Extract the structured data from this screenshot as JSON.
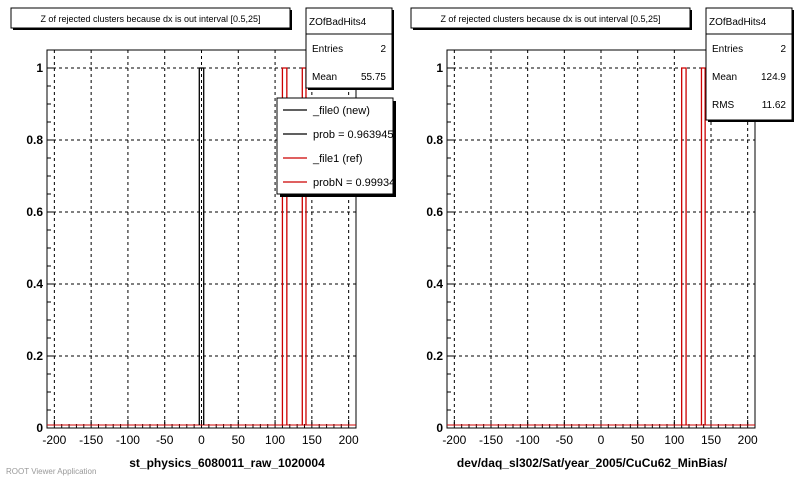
{
  "footer": "ROOT Viewer Application",
  "chart_data": [
    {
      "type": "histogram",
      "title": "Z of rejected clusters  because dx is out interval  [0.5,25]",
      "xlabel": "st_physics_6080011_raw_1020004",
      "xlim": [
        -210,
        210
      ],
      "ylim": [
        0,
        1.05
      ],
      "x_ticks": [
        "-200",
        "-150",
        "-100",
        "-50",
        "0",
        "50",
        "100",
        "150",
        "200"
      ],
      "y_ticks": [
        "0",
        "0.2",
        "0.4",
        "0.6",
        "0.8",
        "1"
      ],
      "grid": true,
      "stats": {
        "name": "ZOfBadHits4",
        "rows": [
          {
            "label": "Entries",
            "value": "2"
          },
          {
            "label": "Mean",
            "value": "55.75"
          }
        ]
      },
      "legend": {
        "placement": "top-right",
        "entries": [
          {
            "label": "_file0 (new)",
            "color": "#000000"
          },
          {
            "label": "prob = 0.963945",
            "color": "#000000"
          },
          {
            "label": "_file1 (ref)",
            "color": "#cc0000"
          },
          {
            "label": "probN = 0.999347",
            "color": "#cc0000"
          }
        ]
      },
      "series": [
        {
          "name": "_file0 (new)",
          "color": "#000000",
          "bins": [
            {
              "x0": -3,
              "x1": 3,
              "y": 1
            }
          ]
        },
        {
          "name": "_file1 (ref)",
          "color": "#cc0000",
          "bins": [
            {
              "x0": 110,
              "x1": 116,
              "y": 1
            },
            {
              "x0": 137,
              "x1": 142,
              "y": 1
            }
          ]
        }
      ]
    },
    {
      "type": "histogram",
      "title": "Z of rejected clusters  because dx is out interval  [0.5,25]",
      "xlabel": "dev/daq_sl302/Sat/year_2005/CuCu62_MinBias/",
      "xlim": [
        -210,
        210
      ],
      "ylim": [
        0,
        1.05
      ],
      "x_ticks": [
        "-200",
        "-150",
        "-100",
        "-50",
        "0",
        "50",
        "100",
        "150",
        "200"
      ],
      "y_ticks": [
        "0",
        "0.2",
        "0.4",
        "0.6",
        "0.8",
        "1"
      ],
      "grid": true,
      "stats": {
        "name": "ZOfBadHits4",
        "rows": [
          {
            "label": "Entries",
            "value": "2"
          },
          {
            "label": "Mean",
            "value": "124.9"
          },
          {
            "label": "RMS",
            "value": "11.62"
          }
        ]
      },
      "series": [
        {
          "name": "",
          "color": "#cc0000",
          "bins": [
            {
              "x0": 110,
              "x1": 116,
              "y": 1
            },
            {
              "x0": 137,
              "x1": 142,
              "y": 1
            }
          ]
        }
      ]
    }
  ]
}
